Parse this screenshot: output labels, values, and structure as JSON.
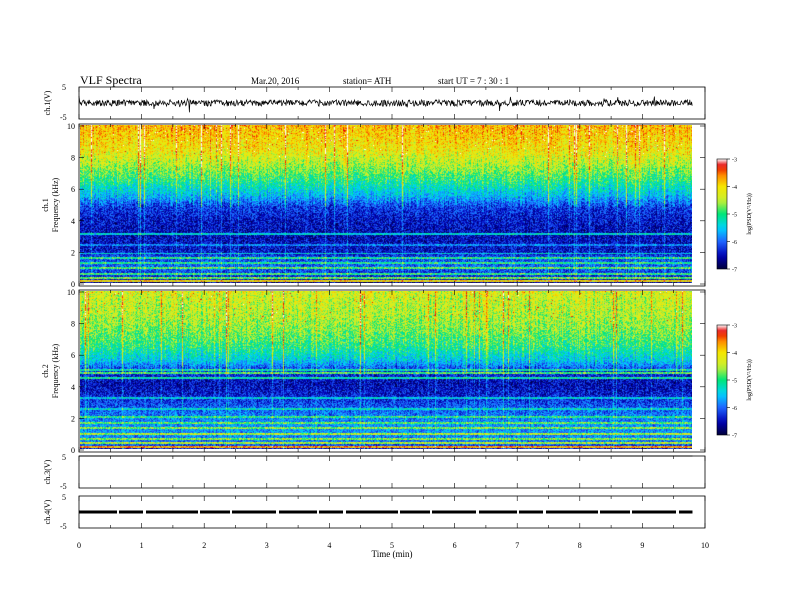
{
  "header": {
    "title": "VLF  Spectra",
    "date": "Mar.20, 2016",
    "station": "station= ATH",
    "start": "start  UT  =   7  : 30 : 1"
  },
  "colors": {
    "background": "#ffffff",
    "spectrogram_scale": [
      "#00003a",
      "#0000b4",
      "#1e64ff",
      "#00d2ff",
      "#00e678",
      "#c8f032",
      "#f5e600",
      "#ff8c00",
      "#e60000",
      "#ffffff"
    ]
  },
  "chart_data": [
    {
      "type": "line",
      "panel": "ch1-waveform",
      "ylabel": "ch.1(V)",
      "ylim": [
        -5,
        5
      ],
      "y_ticks": [
        "5",
        "-5"
      ],
      "x_range_min": [
        0,
        10
      ],
      "trace_range_min": [
        0,
        9.8
      ],
      "approx_level_v": 0,
      "approx_peak_to_peak_v": 2.5
    },
    {
      "type": "heatmap",
      "panel": "ch1-spectrogram",
      "ylabel_channel": "ch.1",
      "ylabel": "Frequency  (kHz)",
      "ylim": [
        0,
        10
      ],
      "y_ticks": [
        "0",
        "2",
        "4",
        "6",
        "8",
        "10"
      ],
      "colorbar": {
        "label": "log(PSD(V²/Hz))",
        "range": [
          -7,
          -3
        ],
        "ticks": [
          "-3",
          "-4",
          "-5",
          "-6",
          "-7"
        ]
      },
      "frequency_profile_khz": [
        [
          0.0,
          -6.6
        ],
        [
          0.5,
          -6.2
        ],
        [
          1.0,
          -6.0
        ],
        [
          1.5,
          -6.1
        ],
        [
          2.0,
          -6.4
        ],
        [
          3.0,
          -6.5
        ],
        [
          4.0,
          -6.4
        ],
        [
          4.8,
          -6.2
        ],
        [
          5.5,
          -5.6
        ],
        [
          6.5,
          -5.0
        ],
        [
          7.5,
          -4.5
        ],
        [
          8.5,
          -4.1
        ],
        [
          9.5,
          -3.9
        ],
        [
          10.0,
          -3.8
        ]
      ]
    },
    {
      "type": "heatmap",
      "panel": "ch2-spectrogram",
      "ylabel_channel": "ch.2",
      "ylabel": "Frequency  (kHz)",
      "ylim": [
        0,
        10
      ],
      "y_ticks": [
        "0",
        "2",
        "4",
        "6",
        "8",
        "10"
      ],
      "colorbar": {
        "label": "log(PSD(V²/Hz))",
        "range": [
          -7,
          -3
        ],
        "ticks": [
          "-3",
          "-4",
          "-5",
          "-6",
          "-7"
        ]
      },
      "frequency_profile_khz": [
        [
          0.0,
          -6.3
        ],
        [
          0.5,
          -5.9
        ],
        [
          1.0,
          -5.8
        ],
        [
          1.5,
          -5.8
        ],
        [
          2.0,
          -5.9
        ],
        [
          2.8,
          -6.1
        ],
        [
          3.5,
          -6.4
        ],
        [
          4.2,
          -6.5
        ],
        [
          5.0,
          -6.2
        ],
        [
          5.6,
          -5.5
        ],
        [
          6.5,
          -5.0
        ],
        [
          7.5,
          -4.7
        ],
        [
          8.5,
          -4.5
        ],
        [
          9.5,
          -4.4
        ],
        [
          10.0,
          -4.3
        ]
      ]
    },
    {
      "type": "line",
      "panel": "ch3-waveform",
      "ylabel": "ch.3(V)",
      "ylim": [
        -5,
        5
      ],
      "y_ticks": [
        "5",
        "-5"
      ],
      "x_range_min": [
        0,
        10
      ],
      "trace_range_min": [
        0,
        9.8
      ],
      "approx_level_v": 5
    },
    {
      "type": "line",
      "panel": "ch4-waveform",
      "ylabel": "ch.4(V)",
      "ylim": [
        -5,
        5
      ],
      "y_ticks": [
        "5",
        "-5"
      ],
      "x_range_min": [
        0,
        10
      ],
      "trace_range_min": [
        0,
        9.8
      ],
      "approx_level_v": 0
    }
  ],
  "time_axis": {
    "label": "Time  (min)",
    "ticks": [
      "0",
      "1",
      "2",
      "3",
      "4",
      "5",
      "6",
      "7",
      "8",
      "9",
      "10"
    ],
    "range": [
      0,
      10
    ]
  }
}
